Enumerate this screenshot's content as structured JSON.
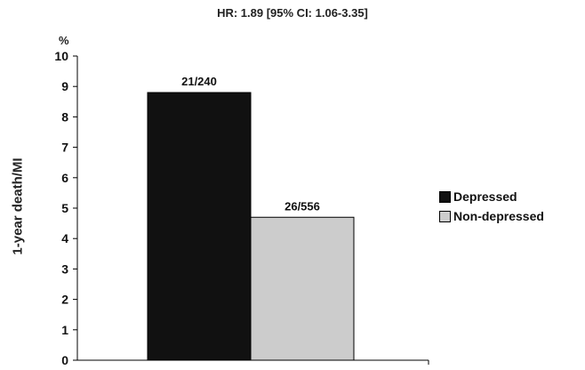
{
  "chart_data": {
    "type": "bar",
    "title": "HR: 1.89 [95% CI: 1.06-3.35]",
    "unit": "%",
    "ylabel": "1-year death/MI",
    "xlabel": "",
    "ylim": [
      0,
      10
    ],
    "yticks": [
      0,
      1,
      2,
      3,
      4,
      5,
      6,
      7,
      8,
      9,
      10
    ],
    "grid": false,
    "legend_position": "right",
    "series": [
      {
        "name": "Depressed",
        "value": 8.8,
        "label": "21/240",
        "color": "#111111"
      },
      {
        "name": "Non-depressed",
        "value": 4.7,
        "label": "26/556",
        "color": "#cccccc"
      }
    ]
  }
}
